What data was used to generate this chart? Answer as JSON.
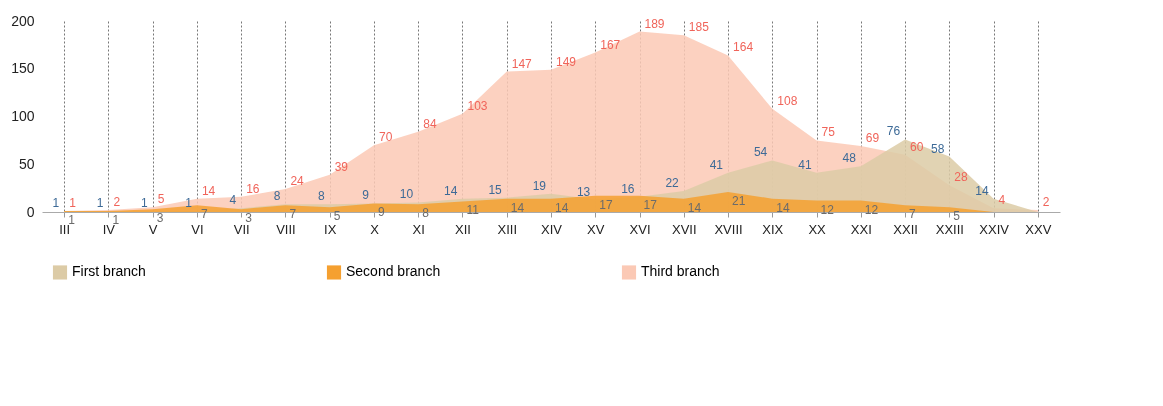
{
  "chart_data": {
    "type": "area",
    "categories": [
      "III",
      "IV",
      "V",
      "VI",
      "VII",
      "VIII",
      "IX",
      "X",
      "XI",
      "XII",
      "XIII",
      "XIV",
      "XV",
      "XVI",
      "XVII",
      "XVIII",
      "XIX",
      "XX",
      "XXI",
      "XXII",
      "XXIII",
      "XXIV",
      "XXV"
    ],
    "series": [
      {
        "name": "First branch",
        "color": "#dccba6",
        "values": [
          1,
          1,
          1,
          1,
          4,
          8,
          8,
          9,
          10,
          14,
          15,
          19,
          13,
          16,
          22,
          41,
          54,
          41,
          48,
          76,
          58,
          14,
          0
        ],
        "value_labels": [
          "1",
          "1",
          "1",
          "1",
          "4",
          "8",
          "8",
          "9",
          "10",
          "14",
          "15",
          "19",
          "13",
          "16",
          "22",
          "41",
          "54",
          "41",
          "48",
          "76",
          "58",
          "14",
          null
        ]
      },
      {
        "name": "Second branch",
        "color": "#f5a030",
        "values": [
          1,
          1,
          3,
          7,
          3,
          7,
          5,
          9,
          8,
          11,
          14,
          14,
          17,
          17,
          14,
          21,
          14,
          12,
          12,
          7,
          5,
          0,
          0
        ],
        "value_labels": [
          "1",
          "1",
          "3",
          "7",
          "3",
          "7",
          "5",
          "9",
          "8",
          "11",
          "14",
          "14",
          "17",
          "17",
          "14",
          "21",
          "14",
          "12",
          "12",
          "7",
          "5",
          null,
          null
        ]
      },
      {
        "name": "Third branch",
        "color": "#fbc9b5",
        "values": [
          1,
          2,
          5,
          14,
          16,
          24,
          39,
          70,
          84,
          103,
          147,
          149,
          167,
          189,
          185,
          164,
          108,
          75,
          69,
          60,
          28,
          4,
          2
        ],
        "value_labels": [
          "1",
          "2",
          "5",
          "14",
          "16",
          "24",
          "39",
          "70",
          "84",
          "103",
          "147",
          "149",
          "167",
          "189",
          "185",
          "164",
          "108",
          "75",
          "69",
          "60",
          "28",
          "4",
          "2"
        ]
      }
    ],
    "ylim": [
      0,
      200
    ],
    "yticks": [
      0,
      50,
      100,
      150,
      200
    ],
    "grid": "x",
    "legend": "bottom"
  }
}
